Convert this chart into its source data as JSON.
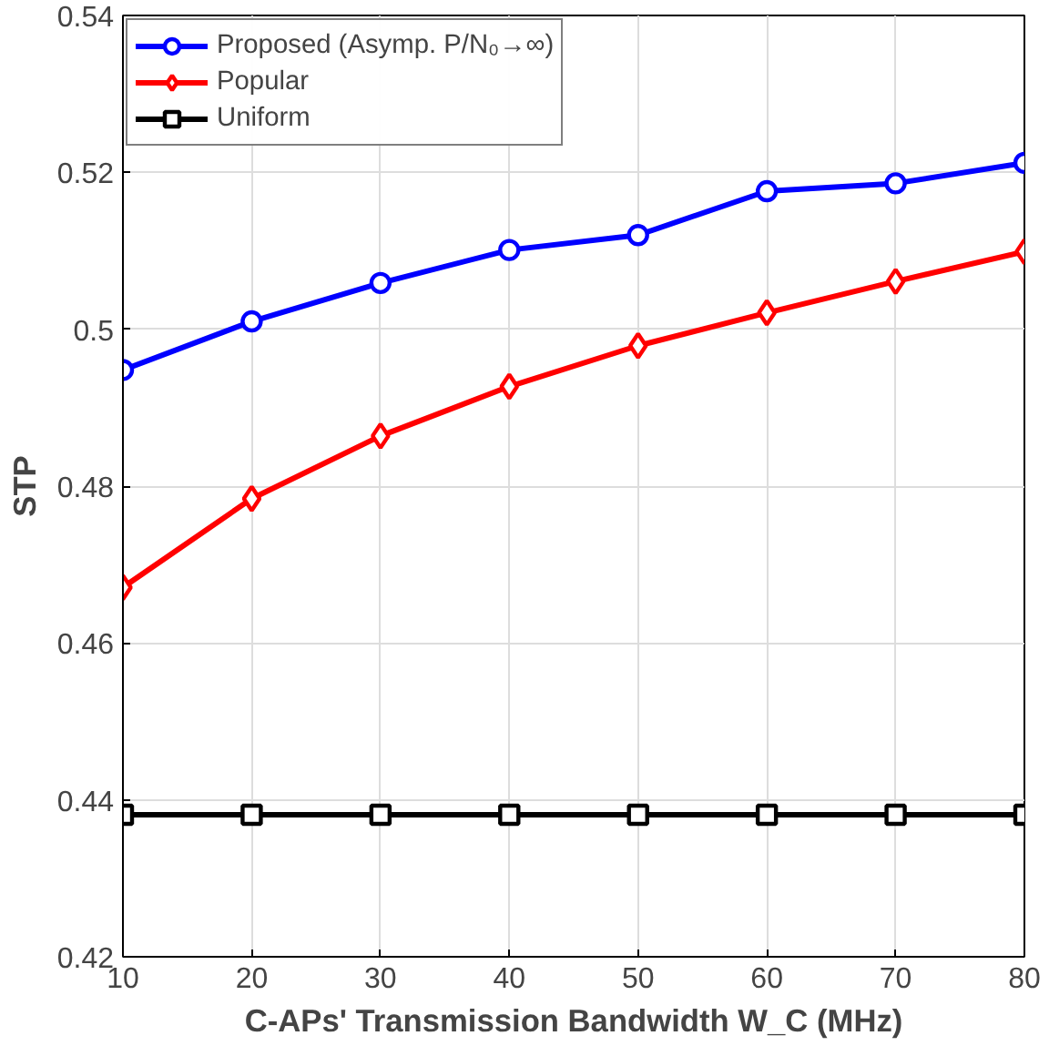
{
  "chart_data": {
    "type": "line",
    "xlabel": "C-APs' Transmission Bandwidth W_C (MHz)",
    "ylabel": "STP",
    "x": [
      10,
      20,
      30,
      40,
      50,
      60,
      70,
      80
    ],
    "series": [
      {
        "name": "Proposed (Asymp. P/N₀→∞)",
        "color": "#0000ff",
        "marker": "circle",
        "values": [
          0.4948,
          0.501,
          0.5059,
          0.5101,
          0.512,
          0.5176,
          0.5186,
          0.5212
        ]
      },
      {
        "name": "Popular",
        "color": "#ff0000",
        "marker": "diamond",
        "values": [
          0.4671,
          0.4784,
          0.4864,
          0.4927,
          0.4979,
          0.5021,
          0.5061,
          0.5099
        ]
      },
      {
        "name": "Uniform",
        "color": "#000000",
        "marker": "square",
        "values": [
          0.4381,
          0.4381,
          0.4381,
          0.4381,
          0.4381,
          0.4381,
          0.4381,
          0.4381
        ]
      }
    ],
    "xlim": [
      10,
      80
    ],
    "xticks": [
      10,
      20,
      30,
      40,
      50,
      60,
      70,
      80
    ],
    "ylim": [
      0.42,
      0.54
    ],
    "yticks": [
      0.42,
      0.44,
      0.46,
      0.48,
      0.5,
      0.52,
      0.54
    ],
    "grid": true,
    "legend": "top left",
    "line_style": "solid"
  }
}
